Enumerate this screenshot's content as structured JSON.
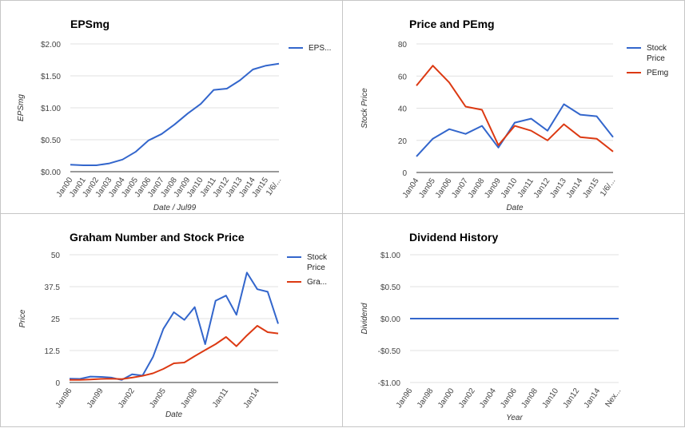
{
  "colors": {
    "blue": "#3366cc",
    "red": "#dc3912",
    "grid": "#e0e0e0"
  },
  "chart_data": [
    {
      "id": "eps",
      "type": "line",
      "title": "EPSmg",
      "xlabel": "Date / Jul99",
      "ylabel": "EPSmg",
      "ylim": [
        0,
        2
      ],
      "yticks": [
        0,
        0.5,
        1,
        1.5,
        2
      ],
      "ytick_labels": [
        "$0.00",
        "$0.50",
        "$1.00",
        "$1.50",
        "$2.00"
      ],
      "x_tick_labels": [
        "Jan00",
        "Jan01",
        "Jan02",
        "Jan03",
        "Jan04",
        "Jan05",
        "Jan06",
        "Jan07",
        "Jan08",
        "Jan09",
        "Jan10",
        "Jan11",
        "Jan12",
        "Jan13",
        "Jan14",
        "Jan15",
        "1/6/..."
      ],
      "legend_position": "right",
      "series": [
        {
          "name": "EPS...",
          "color": "#3366cc",
          "values": [
            0.11,
            0.1,
            0.1,
            0.13,
            0.19,
            0.31,
            0.49,
            0.59,
            0.74,
            0.91,
            1.06,
            1.28,
            1.3,
            1.43,
            1.6,
            1.66,
            1.69
          ]
        }
      ]
    },
    {
      "id": "price_pe",
      "type": "line",
      "title": "Price and PEmg",
      "xlabel": "Date",
      "ylabel": "Stock Price",
      "ylim": [
        0,
        80
      ],
      "yticks": [
        0,
        20,
        40,
        60,
        80
      ],
      "ytick_labels": [
        "0",
        "20",
        "40",
        "60",
        "80"
      ],
      "x_tick_labels": [
        "Jan04",
        "Jan05",
        "Jan06",
        "Jan07",
        "Jan08",
        "Jan09",
        "Jan10",
        "Jan11",
        "Jan12",
        "Jan13",
        "Jan14",
        "Jan15",
        "1/6/..."
      ],
      "legend_position": "right",
      "series": [
        {
          "name": "Stock Price",
          "color": "#3366cc",
          "values": [
            10,
            21,
            27,
            24,
            29,
            15.5,
            31,
            33.5,
            26,
            42.5,
            36,
            35,
            22
          ]
        },
        {
          "name": "PEmg",
          "color": "#dc3912",
          "values": [
            54,
            66.5,
            56,
            41,
            39,
            17,
            29,
            26,
            20,
            30,
            22,
            21,
            13
          ]
        }
      ]
    },
    {
      "id": "graham",
      "type": "line",
      "title": "Graham Number and Stock Price",
      "xlabel": "Date",
      "ylabel": "Price",
      "ylim": [
        0,
        50
      ],
      "yticks": [
        0,
        12.5,
        25,
        37.5,
        50
      ],
      "ytick_labels": [
        "0",
        "12.5",
        "25",
        "37.5",
        "50"
      ],
      "x_tick_labels": [
        "Jan96",
        "Jan99",
        "Jan02",
        "Jan05",
        "Jan08",
        "Jan11",
        "Jan14"
      ],
      "x_tick_index": [
        0,
        3,
        6,
        9,
        12,
        15,
        18
      ],
      "legend_position": "right",
      "series": [
        {
          "name": "Stock Price",
          "color": "#3366cc",
          "values": [
            1.5,
            1.4,
            2.3,
            2.2,
            1.9,
            1.0,
            3.2,
            2.7,
            10,
            21,
            27.5,
            24.5,
            29.5,
            15,
            32,
            34,
            26.5,
            43,
            36.5,
            35.5,
            23
          ]
        },
        {
          "name": "Gra...",
          "color": "#dc3912",
          "values": [
            1.0,
            1.0,
            1.2,
            1.4,
            1.5,
            1.3,
            1.9,
            2.6,
            3.6,
            5.3,
            7.5,
            7.8,
            10.3,
            12.7,
            15,
            17.8,
            14.2,
            18.4,
            22.2,
            19.7,
            19.2
          ]
        }
      ]
    },
    {
      "id": "dividend",
      "type": "line",
      "title": "Dividend History",
      "xlabel": "Year",
      "ylabel": "Dividend",
      "ylim": [
        -1,
        1
      ],
      "yticks": [
        -1,
        -0.5,
        0,
        0.5,
        1
      ],
      "ytick_labels": [
        "-$1.00",
        "-$0.50",
        "$0.00",
        "$0.50",
        "$1.00"
      ],
      "x_tick_labels": [
        "Jan96",
        "Jan98",
        "Jan00",
        "Jan02",
        "Jan04",
        "Jan06",
        "Jan08",
        "Jan10",
        "Jan12",
        "Jan14",
        "Nex..."
      ],
      "legend_position": "none",
      "series": [
        {
          "color": "#3366cc",
          "values": [
            0,
            0,
            0,
            0,
            0,
            0,
            0,
            0,
            0,
            0,
            0
          ]
        }
      ]
    }
  ]
}
